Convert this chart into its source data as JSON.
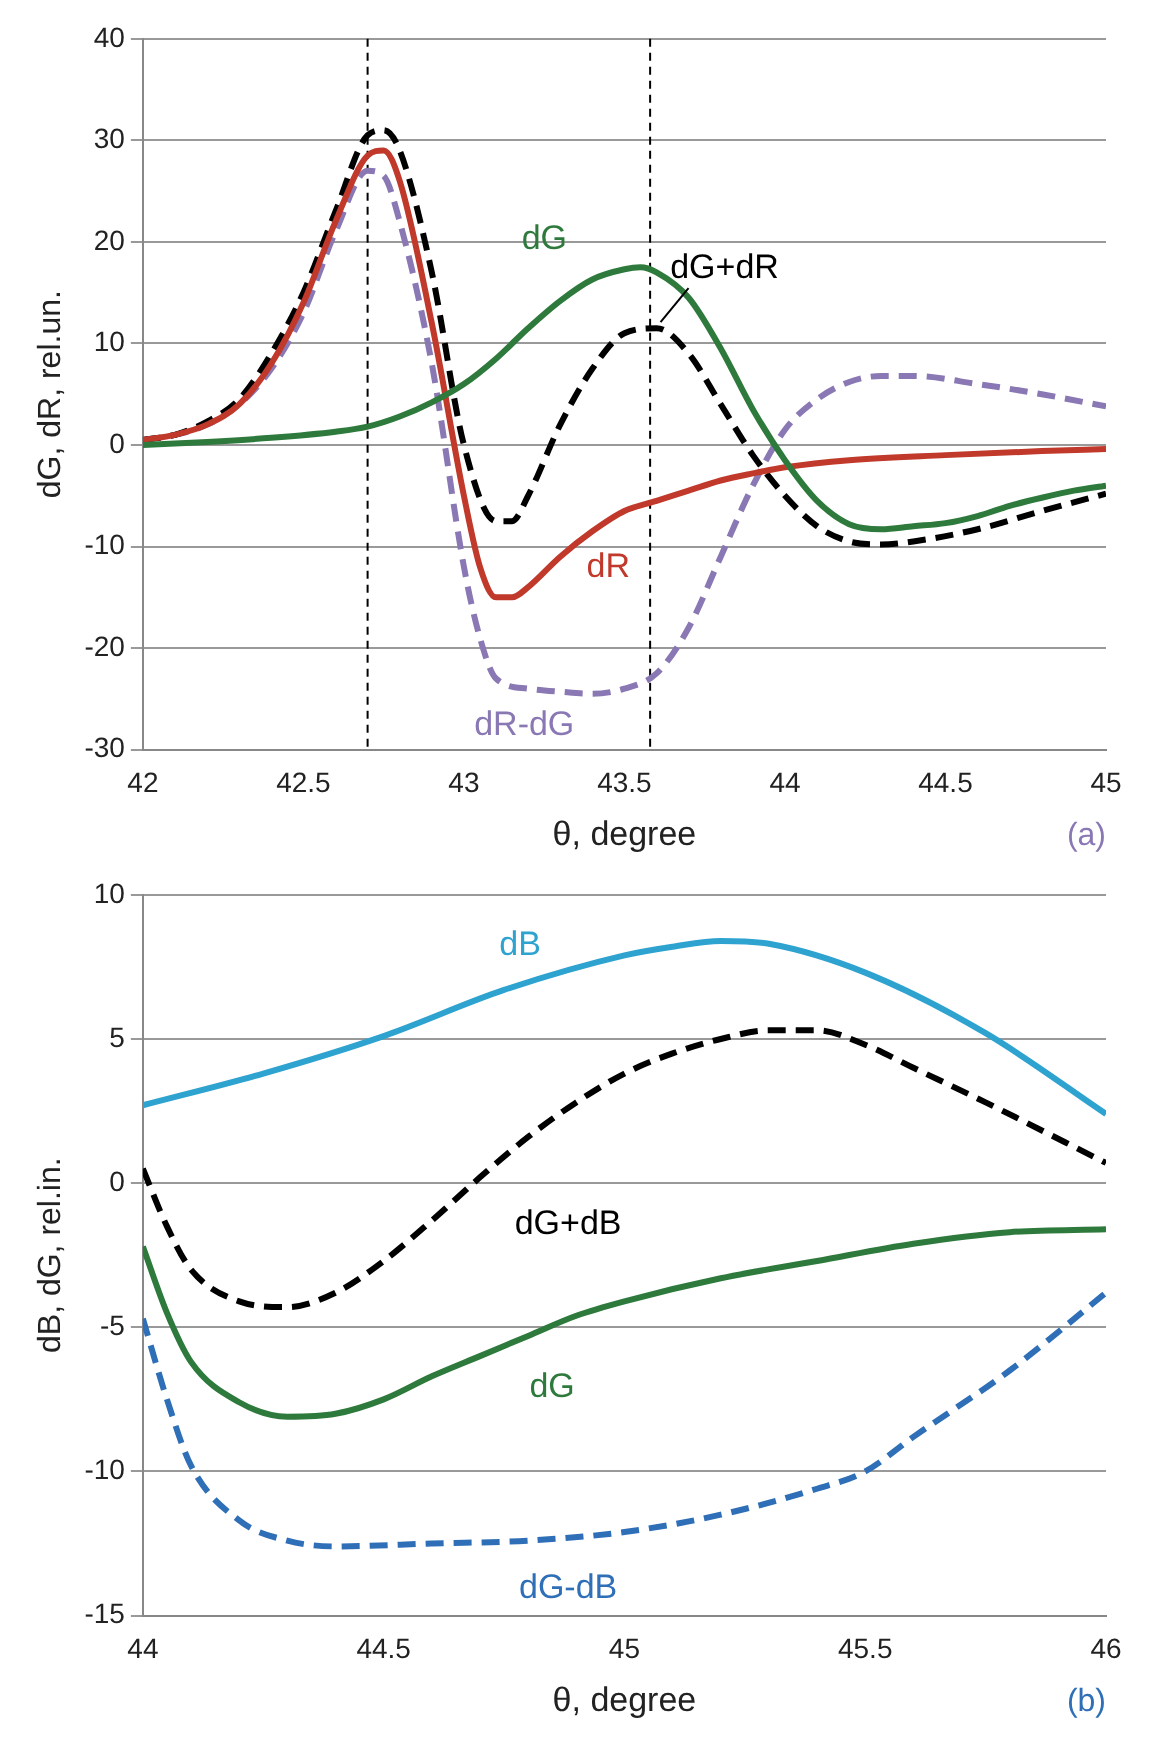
{
  "chart_data": [
    {
      "type": "line",
      "xlabel": "θ, degree",
      "ylabel": "dG, dR, rel.un.",
      "xlim": [
        42,
        45
      ],
      "xticks": [
        42,
        42.5,
        43,
        43.5,
        44,
        44.5,
        45
      ],
      "ylim": [
        -30,
        40
      ],
      "yticks": [
        -30,
        -20,
        -10,
        0,
        10,
        20,
        30,
        40
      ],
      "grid": "y",
      "legend": false,
      "marker": "none",
      "annotations": [
        "(a)"
      ],
      "ref_lines": [
        {
          "axis": "x",
          "value": 42.7,
          "color": "#000000",
          "line_style": "dashed"
        },
        {
          "axis": "x",
          "value": 43.58,
          "color": "#000000",
          "line_style": "dashed"
        }
      ],
      "series": [
        {
          "name": "dG",
          "color": "#2e7a3c",
          "line_style": "solid",
          "x": [
            42,
            42.2,
            42.4,
            42.6,
            42.7,
            42.8,
            42.9,
            43,
            43.1,
            43.2,
            43.3,
            43.4,
            43.5,
            43.55,
            43.6,
            43.7,
            43.8,
            43.9,
            44,
            44.1,
            44.2,
            44.3,
            44.4,
            44.5,
            44.6,
            44.7,
            44.8,
            44.9,
            45
          ],
          "values": [
            0,
            0.3,
            0.7,
            1.3,
            1.8,
            2.8,
            4.2,
            6,
            8.5,
            11.5,
            14.2,
            16.3,
            17.3,
            17.5,
            17,
            14.5,
            9.5,
            3.5,
            -1.5,
            -5.5,
            -7.8,
            -8.3,
            -8,
            -7.7,
            -7,
            -6,
            -5.2,
            -4.5,
            -4
          ]
        },
        {
          "name": "dR",
          "color": "#c0392b",
          "line_style": "solid",
          "x": [
            42,
            42.1,
            42.2,
            42.3,
            42.4,
            42.5,
            42.6,
            42.7,
            42.75,
            42.8,
            42.9,
            43,
            43.05,
            43.1,
            43.15,
            43.2,
            43.3,
            43.4,
            43.5,
            43.6,
            43.7,
            43.8,
            43.9,
            44,
            44.2,
            44.5,
            44.8,
            45
          ],
          "values": [
            0.5,
            1,
            2,
            4,
            8,
            14,
            22,
            28.5,
            29,
            26,
            12,
            -5,
            -12,
            -15,
            -15,
            -14,
            -11,
            -8.5,
            -6.5,
            -5.5,
            -4.5,
            -3.5,
            -2.8,
            -2.2,
            -1.5,
            -1,
            -0.6,
            -0.4
          ]
        },
        {
          "name": "dG+dR",
          "color": "#000000",
          "line_style": "dashed",
          "x": [
            42,
            42.1,
            42.2,
            42.3,
            42.4,
            42.5,
            42.6,
            42.7,
            42.75,
            42.8,
            42.9,
            43,
            43.1,
            43.15,
            43.2,
            43.3,
            43.4,
            43.5,
            43.6,
            43.7,
            43.8,
            43.9,
            44,
            44.1,
            44.2,
            44.3,
            44.4,
            44.6,
            44.8,
            45
          ],
          "values": [
            0.5,
            1,
            2.3,
            4.5,
            9,
            15,
            23,
            30.5,
            31,
            29,
            17,
            0,
            -7.5,
            -7.5,
            -5,
            2,
            7.5,
            11,
            11.5,
            9,
            4,
            -1,
            -5,
            -8,
            -9.5,
            -9.8,
            -9.5,
            -8.3,
            -6.5,
            -4.8
          ]
        },
        {
          "name": "dR-dG",
          "color": "#8a78b4",
          "line_style": "dashed",
          "x": [
            42,
            42.1,
            42.2,
            42.3,
            42.4,
            42.5,
            42.6,
            42.7,
            42.75,
            42.8,
            42.9,
            43,
            43.05,
            43.1,
            43.2,
            43.3,
            43.4,
            43.5,
            43.6,
            43.7,
            43.8,
            43.9,
            44,
            44.1,
            44.2,
            44.3,
            44.4,
            44.6,
            44.8,
            45
          ],
          "values": [
            0.5,
            1,
            2,
            4,
            7.5,
            13,
            21,
            27,
            26.5,
            22,
            8,
            -12,
            -19,
            -23,
            -24,
            -24.3,
            -24.5,
            -24,
            -22.5,
            -18,
            -11,
            -4,
            1.5,
            4.5,
            6.2,
            6.8,
            6.8,
            6,
            5,
            3.8
          ]
        }
      ]
    },
    {
      "type": "line",
      "xlabel": "θ, degree",
      "ylabel": "dB, dG, rel.in.",
      "xlim": [
        44,
        46
      ],
      "xticks": [
        44,
        44.5,
        45,
        45.5,
        46
      ],
      "ylim": [
        -15,
        10
      ],
      "yticks": [
        -15,
        -10,
        -5,
        0,
        5,
        10
      ],
      "grid": "y",
      "legend": false,
      "marker": "none",
      "annotations": [
        "(b)"
      ],
      "series": [
        {
          "name": "dB",
          "color": "#2ea3d0",
          "line_style": "solid",
          "x": [
            44,
            44.25,
            44.5,
            44.75,
            45,
            45.1,
            45.2,
            45.3,
            45.5,
            45.75,
            46
          ],
          "values": [
            2.7,
            3.8,
            5.1,
            6.7,
            7.9,
            8.2,
            8.4,
            8.3,
            7.3,
            5.2,
            2.4
          ]
        },
        {
          "name": "dG+dB",
          "color": "#000000",
          "line_style": "dashed",
          "x": [
            44,
            44.05,
            44.1,
            44.2,
            44.3,
            44.4,
            44.5,
            44.6,
            44.7,
            44.8,
            44.9,
            45,
            45.1,
            45.2,
            45.3,
            45.4,
            45.5,
            45.6,
            45.75,
            46
          ],
          "values": [
            0.5,
            -1.5,
            -3,
            -4.1,
            -4.3,
            -3.8,
            -2.7,
            -1.3,
            0.2,
            1.6,
            2.8,
            3.8,
            4.5,
            5,
            5.3,
            5.3,
            4.8,
            4,
            2.8,
            0.7
          ]
        },
        {
          "name": "dG",
          "color": "#2e7a3c",
          "line_style": "solid",
          "x": [
            44,
            44.05,
            44.1,
            44.2,
            44.3,
            44.4,
            44.5,
            44.6,
            44.7,
            44.8,
            44.9,
            45,
            45.2,
            45.4,
            45.6,
            45.8,
            46
          ],
          "values": [
            -2.2,
            -4.5,
            -6.2,
            -7.6,
            -8.1,
            -8,
            -7.5,
            -6.7,
            -6,
            -5.3,
            -4.6,
            -4.1,
            -3.3,
            -2.7,
            -2.1,
            -1.7,
            -1.6
          ]
        },
        {
          "name": "dG-dB",
          "color": "#2e6fb7",
          "line_style": "dashed",
          "x": [
            44,
            44.05,
            44.1,
            44.2,
            44.3,
            44.4,
            44.6,
            44.8,
            45,
            45.2,
            45.4,
            45.5,
            45.6,
            45.8,
            46
          ],
          "values": [
            -4.7,
            -7.5,
            -9.8,
            -11.7,
            -12.4,
            -12.6,
            -12.5,
            -12.4,
            -12.1,
            -11.5,
            -10.6,
            -10,
            -8.8,
            -6.5,
            -3.8
          ]
        }
      ]
    }
  ]
}
